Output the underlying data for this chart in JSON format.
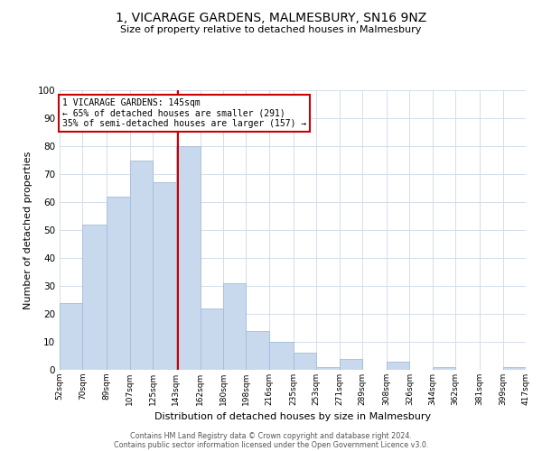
{
  "title": "1, VICARAGE GARDENS, MALMESBURY, SN16 9NZ",
  "subtitle": "Size of property relative to detached houses in Malmesbury",
  "xlabel": "Distribution of detached houses by size in Malmesbury",
  "ylabel": "Number of detached properties",
  "bar_color": "#c8d9ee",
  "bar_edge_color": "#a4bcd8",
  "grid_color": "#d4dde8",
  "background_color": "#ffffff",
  "bin_edges": [
    52,
    70,
    89,
    107,
    125,
    143,
    162,
    180,
    198,
    216,
    235,
    253,
    271,
    289,
    308,
    326,
    344,
    362,
    381,
    399,
    417
  ],
  "bin_labels": [
    "52sqm",
    "70sqm",
    "89sqm",
    "107sqm",
    "125sqm",
    "143sqm",
    "162sqm",
    "180sqm",
    "198sqm",
    "216sqm",
    "235sqm",
    "253sqm",
    "271sqm",
    "289sqm",
    "308sqm",
    "326sqm",
    "344sqm",
    "362sqm",
    "381sqm",
    "399sqm",
    "417sqm"
  ],
  "counts": [
    24,
    52,
    62,
    75,
    67,
    80,
    22,
    31,
    14,
    10,
    6,
    1,
    4,
    0,
    3,
    0,
    1,
    0,
    0,
    1
  ],
  "property_size": 145,
  "vline_color": "#cc0000",
  "annotation_text_line1": "1 VICARAGE GARDENS: 145sqm",
  "annotation_text_line2": "← 65% of detached houses are smaller (291)",
  "annotation_text_line3": "35% of semi-detached houses are larger (157) →",
  "annotation_box_color": "#cc0000",
  "ylim": [
    0,
    100
  ],
  "yticks": [
    0,
    10,
    20,
    30,
    40,
    50,
    60,
    70,
    80,
    90,
    100
  ],
  "footer_line1": "Contains HM Land Registry data © Crown copyright and database right 2024.",
  "footer_line2": "Contains public sector information licensed under the Open Government Licence v3.0."
}
